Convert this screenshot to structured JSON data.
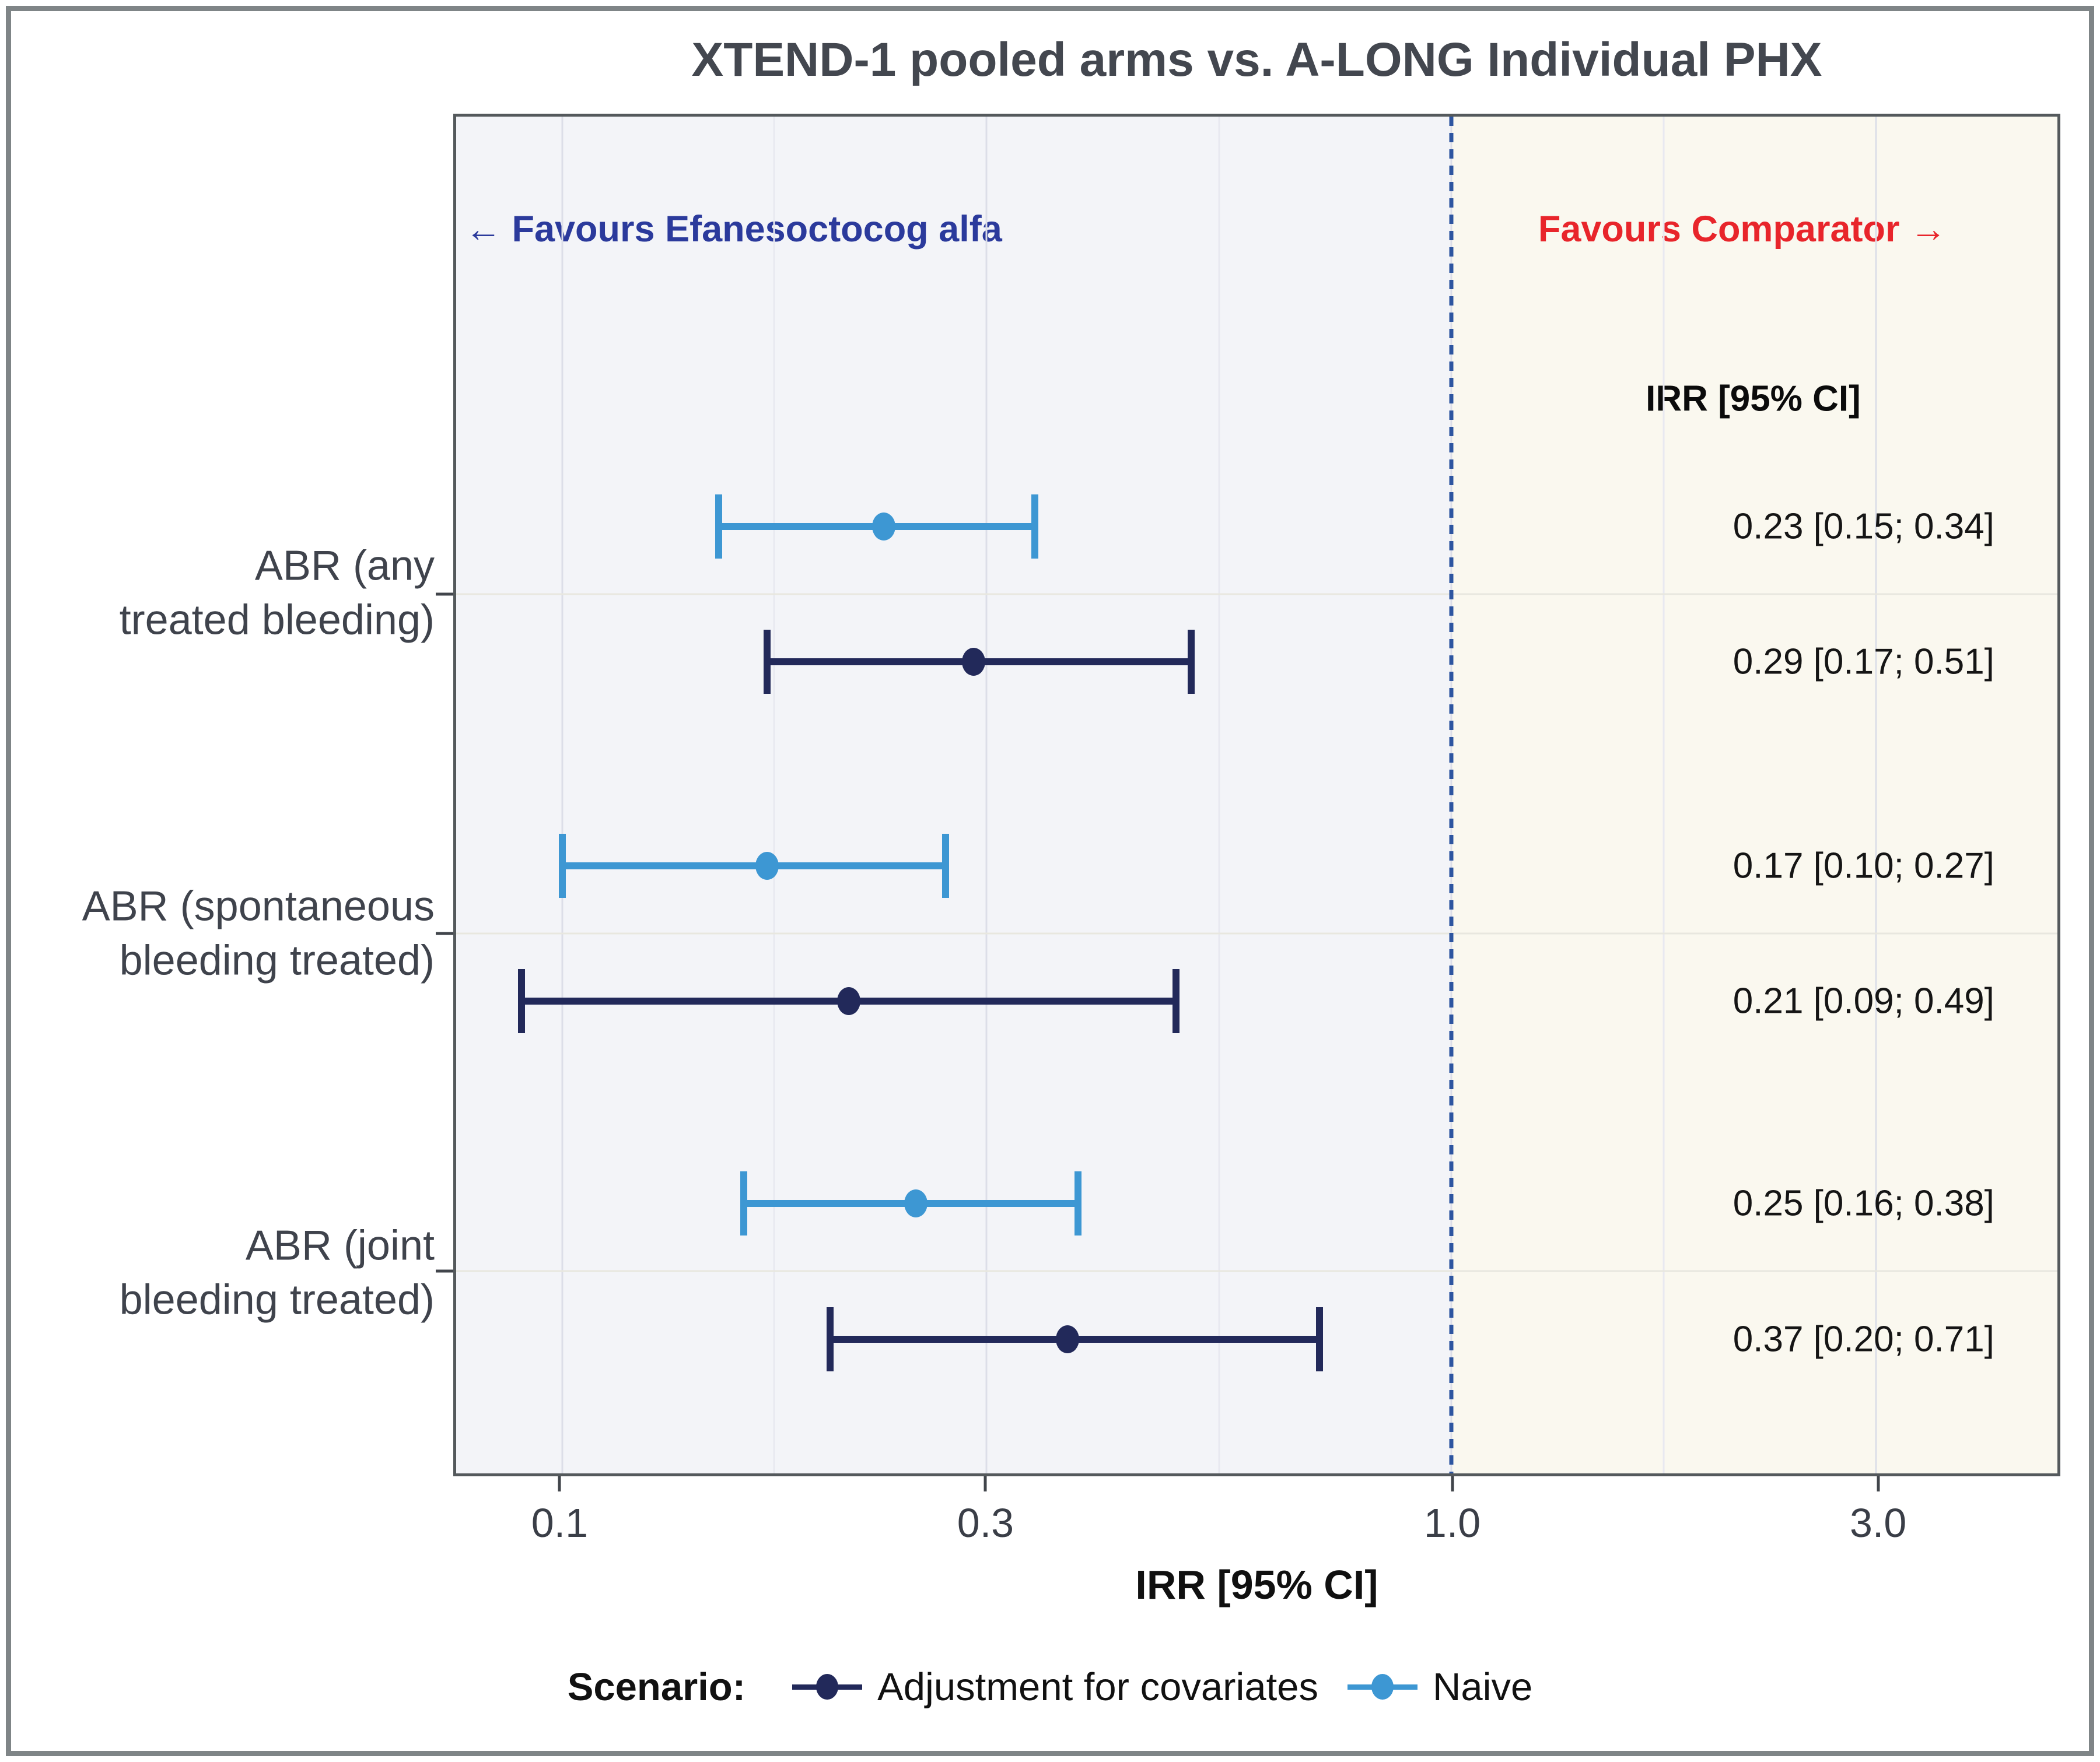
{
  "chart_data": {
    "type": "scatter",
    "subtype": "forest-plot-pointrange",
    "title": "XTEND-1 pooled arms vs. A-LONG Individual PHX",
    "xlabel": "IRR [95% CI]",
    "x_scale": "log10",
    "xlim": [
      0.076,
      4.8
    ],
    "x_ticks": [
      {
        "value": 0.1,
        "label": "0.1"
      },
      {
        "value": 0.3,
        "label": "0.3"
      },
      {
        "value": 1.0,
        "label": "1.0"
      },
      {
        "value": 3.0,
        "label": "3.0"
      }
    ],
    "x_minor_gridlines": [
      0.173,
      0.548,
      1.732
    ],
    "grid": true,
    "reference_line": {
      "value": 1.0,
      "style": "dashed",
      "color": "#2d55a0"
    },
    "favours_left": "← Favours Efanesoctocog alfa",
    "favours_right": "Favours Comparator →",
    "value_column_header": "IRR [95% CI]",
    "legend": {
      "title": "Scenario:",
      "position": "bottom",
      "items": [
        {
          "name": "Adjustment for covariates",
          "color": "#22295a"
        },
        {
          "name": "Naive",
          "color": "#3d97d3"
        }
      ]
    },
    "groups": [
      {
        "label_lines": [
          "ABR (any",
          "treated bleeding)"
        ],
        "rows": [
          {
            "scenario": "Naive",
            "irr": 0.23,
            "ci_low": 0.15,
            "ci_high": 0.34,
            "text": "0.23 [0.15; 0.34]"
          },
          {
            "scenario": "Adjustment for covariates",
            "irr": 0.29,
            "ci_low": 0.17,
            "ci_high": 0.51,
            "text": "0.29 [0.17; 0.51]"
          }
        ]
      },
      {
        "label_lines": [
          "ABR (spontaneous",
          "bleeding treated)"
        ],
        "rows": [
          {
            "scenario": "Naive",
            "irr": 0.17,
            "ci_low": 0.1,
            "ci_high": 0.27,
            "text": "0.17 [0.10; 0.27]"
          },
          {
            "scenario": "Adjustment for covariates",
            "irr": 0.21,
            "ci_low": 0.09,
            "ci_high": 0.49,
            "text": "0.21 [0.09; 0.49]"
          }
        ]
      },
      {
        "label_lines": [
          "ABR (joint",
          "bleeding treated)"
        ],
        "rows": [
          {
            "scenario": "Naive",
            "irr": 0.25,
            "ci_low": 0.16,
            "ci_high": 0.38,
            "text": "0.25 [0.16; 0.38]"
          },
          {
            "scenario": "Adjustment for covariates",
            "irr": 0.37,
            "ci_low": 0.2,
            "ci_high": 0.71,
            "text": "0.37 [0.20; 0.71]"
          }
        ]
      }
    ],
    "colors": {
      "panel_bg_left": "#f3f4f8",
      "panel_bg_right": "#faf8ef",
      "favours_left_color": "#2b3a9c",
      "favours_right_color": "#e8252b",
      "title_color": "#43474f"
    }
  }
}
